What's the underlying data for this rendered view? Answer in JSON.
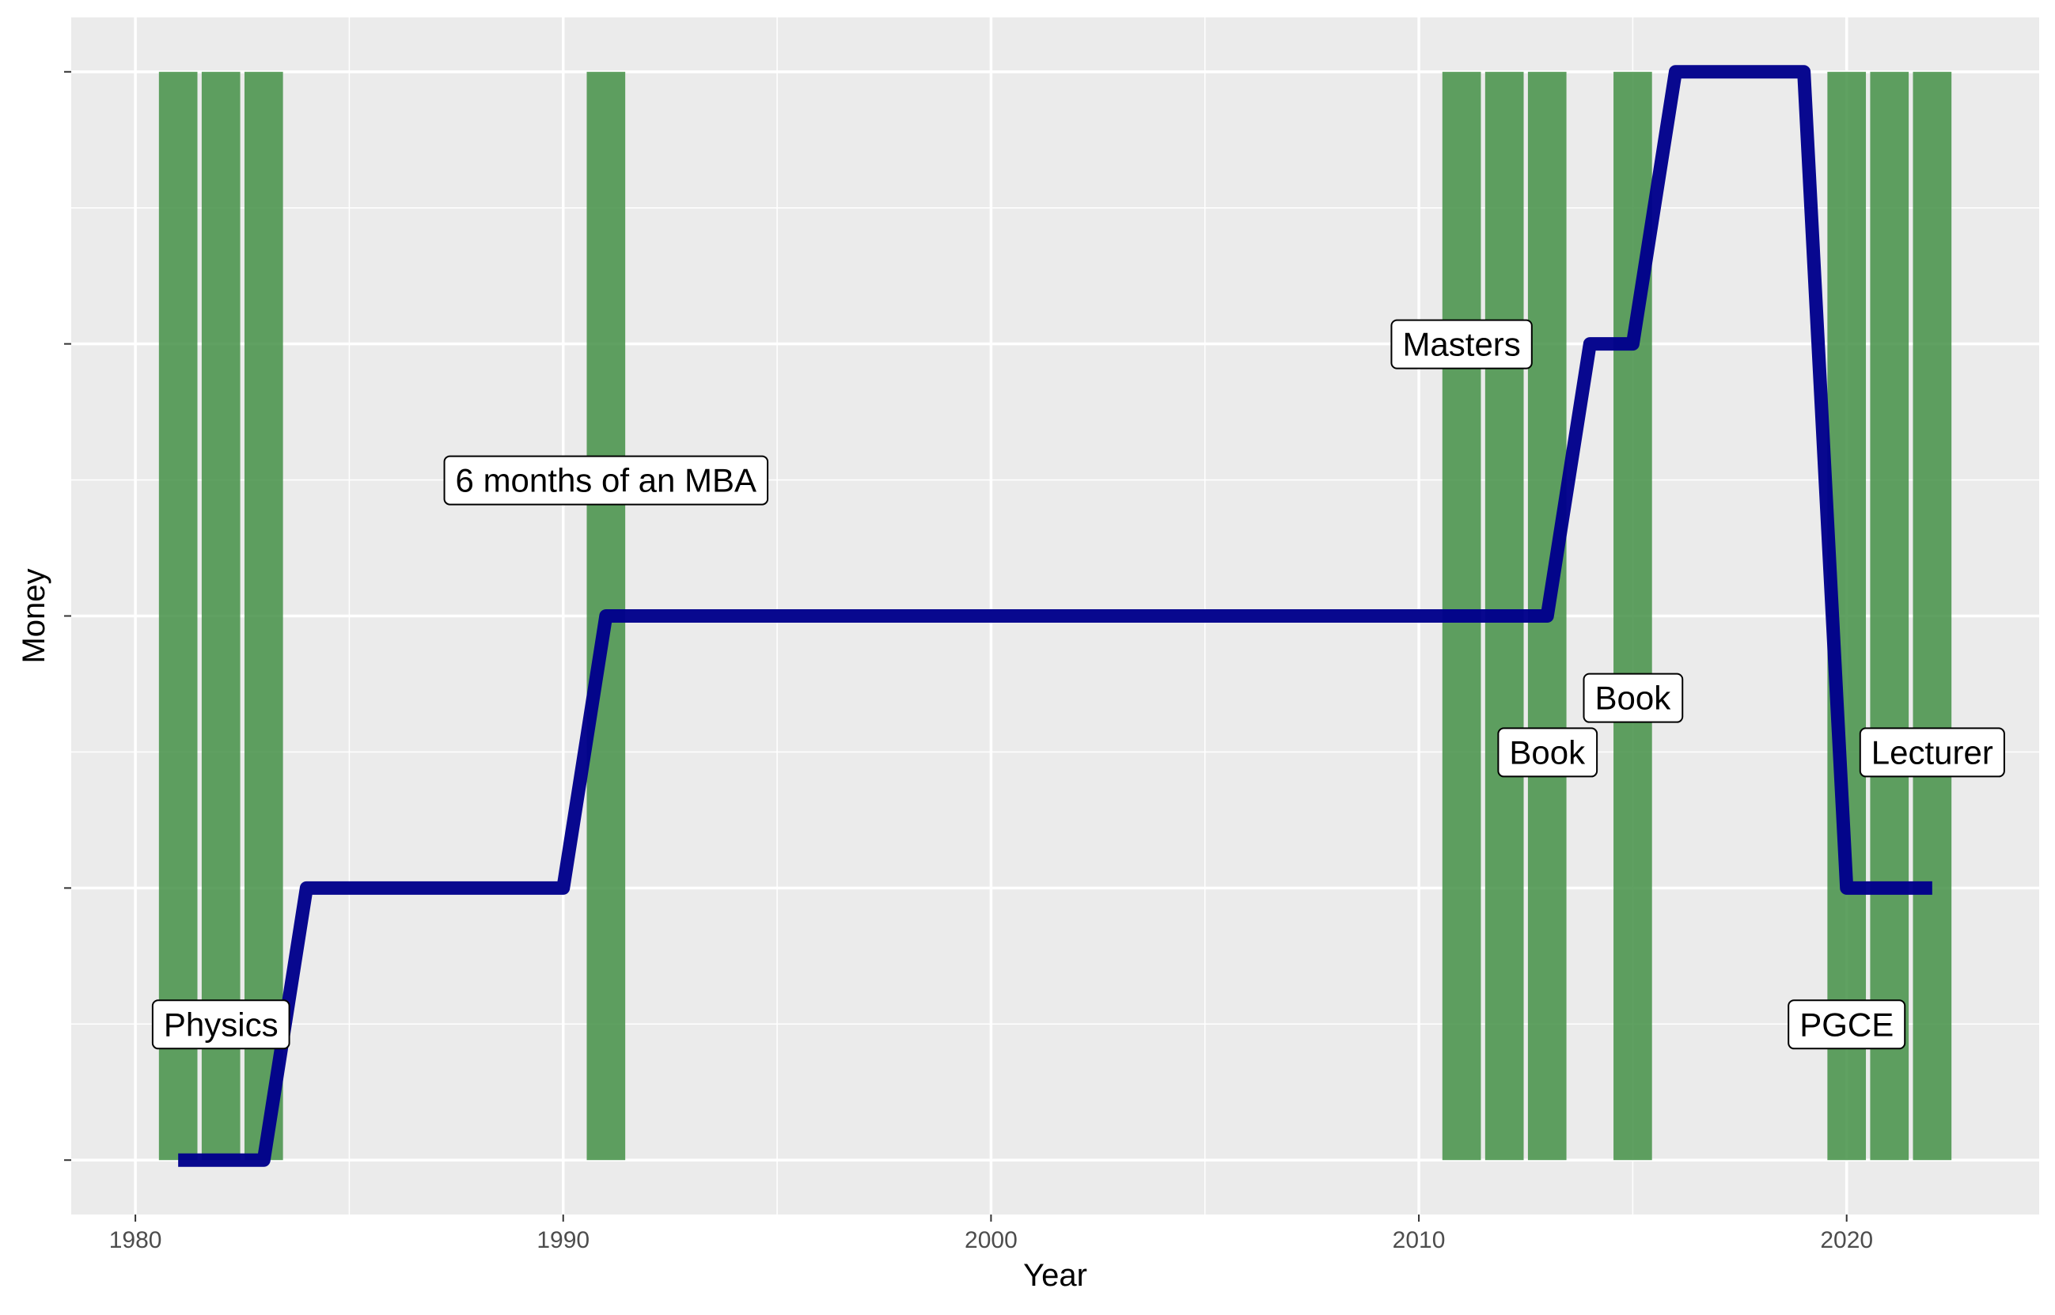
{
  "chart_data": {
    "type": "line",
    "xlabel": "Year",
    "ylabel": "Money",
    "xlim": [
      1978.5,
      2024.5
    ],
    "ylim": [
      -0.2,
      4.2
    ],
    "x_ticks": [
      1980,
      1990,
      2000,
      2010,
      2020
    ],
    "x_tick_labels": [
      "1980",
      "1990",
      "2000",
      "2010",
      "2020"
    ],
    "y_ticks": [
      0,
      1,
      2,
      3,
      4
    ],
    "y_tick_labels": [
      "",
      "",
      "",
      "",
      ""
    ],
    "grid": true,
    "legend": "none",
    "colors": {
      "panel_background": "#EBEBEB",
      "grid": "#FFFFFF",
      "study_bars": "#3D8C40",
      "money_line": "#00008B"
    },
    "study_years": [
      1981,
      1982,
      1983,
      1991,
      2011,
      2012,
      2013,
      2015,
      2020,
      2021,
      2022
    ],
    "study_bar_range": [
      0,
      4
    ],
    "series": [
      {
        "x": [
          1981,
          1983,
          1984,
          1990,
          1991,
          2013,
          2014,
          2015,
          2016,
          2019,
          2020,
          2022
        ],
        "y": [
          0,
          0,
          1,
          1,
          2,
          2,
          3,
          3,
          4,
          4,
          1,
          1
        ]
      }
    ],
    "annotations": [
      {
        "label": "Physics",
        "x": 1982,
        "y": 0.5
      },
      {
        "label": "6 months of an MBA",
        "x": 1991,
        "y": 2.5
      },
      {
        "label": "Masters",
        "x": 2011,
        "y": 3
      },
      {
        "label": "Book",
        "x": 2013,
        "y": 1.5
      },
      {
        "label": "Book",
        "x": 2015,
        "y": 1.7
      },
      {
        "label": "PGCE",
        "x": 2020,
        "y": 0.5
      },
      {
        "label": "Lecturer",
        "x": 2022,
        "y": 1.5
      }
    ]
  }
}
